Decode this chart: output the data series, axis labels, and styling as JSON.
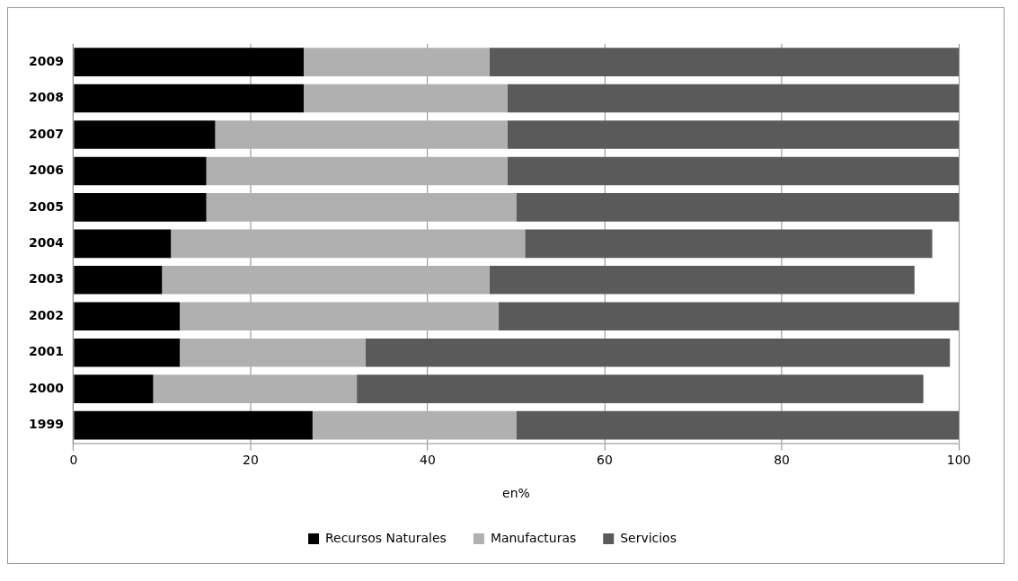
{
  "chart_data": {
    "type": "bar",
    "orientation": "horizontal",
    "stacked": true,
    "xlabel": "en%",
    "categories": [
      "2009",
      "2008",
      "2007",
      "2006",
      "2005",
      "2004",
      "2003",
      "2002",
      "2001",
      "2000",
      "1999"
    ],
    "series": [
      {
        "name": "Recursos Naturales",
        "color": "#000000",
        "values": [
          26,
          26,
          16,
          15,
          15,
          11,
          10,
          12,
          12,
          9,
          27
        ]
      },
      {
        "name": "Manufacturas",
        "color": "#b0b0b0",
        "values": [
          21,
          23,
          33,
          34,
          35,
          40,
          37,
          36,
          21,
          23,
          23
        ]
      },
      {
        "name": "Servicios",
        "color": "#5a5a5a",
        "values": [
          53,
          51,
          51,
          51,
          50,
          46,
          48,
          52,
          66,
          64,
          50
        ]
      }
    ],
    "xlim": [
      0,
      100
    ],
    "xticks": [
      0,
      20,
      40,
      60,
      80,
      100
    ],
    "grid": "x",
    "legend": "bottom"
  }
}
